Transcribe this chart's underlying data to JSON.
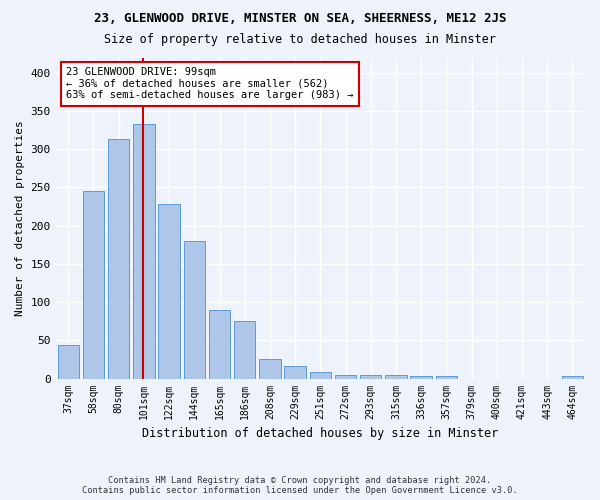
{
  "title1": "23, GLENWOOD DRIVE, MINSTER ON SEA, SHEERNESS, ME12 2JS",
  "title2": "Size of property relative to detached houses in Minster",
  "xlabel": "Distribution of detached houses by size in Minster",
  "ylabel": "Number of detached properties",
  "categories": [
    "37sqm",
    "58sqm",
    "80sqm",
    "101sqm",
    "122sqm",
    "144sqm",
    "165sqm",
    "186sqm",
    "208sqm",
    "229sqm",
    "251sqm",
    "272sqm",
    "293sqm",
    "315sqm",
    "336sqm",
    "357sqm",
    "379sqm",
    "400sqm",
    "421sqm",
    "443sqm",
    "464sqm"
  ],
  "values": [
    44,
    246,
    313,
    333,
    228,
    180,
    90,
    75,
    26,
    16,
    9,
    4,
    5,
    5,
    3,
    3,
    0,
    0,
    0,
    0,
    3
  ],
  "bar_color": "#aec6e8",
  "bar_edge_color": "#5b9bd5",
  "vline_x": 2.95,
  "vline_color": "#cc0000",
  "annotation_line1": "23 GLENWOOD DRIVE: 99sqm",
  "annotation_line2": "← 36% of detached houses are smaller (562)",
  "annotation_line3": "63% of semi-detached houses are larger (983) →",
  "annotation_box_facecolor": "white",
  "annotation_box_edgecolor": "#cc0000",
  "footer_line1": "Contains HM Land Registry data © Crown copyright and database right 2024.",
  "footer_line2": "Contains public sector information licensed under the Open Government Licence v3.0.",
  "ylim": [
    0,
    420
  ],
  "yticks": [
    0,
    50,
    100,
    150,
    200,
    250,
    300,
    350,
    400
  ],
  "background_color": "#eef2fa",
  "grid_color": "white"
}
